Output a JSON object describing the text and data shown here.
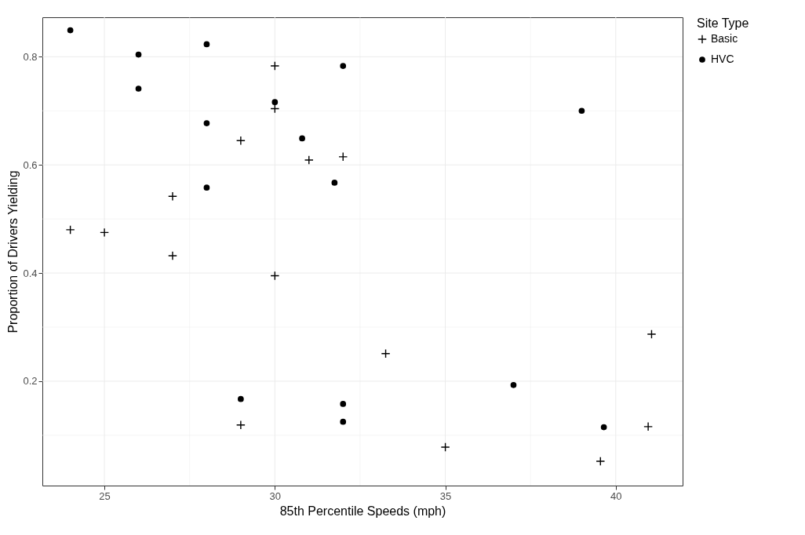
{
  "chart_data": {
    "type": "scatter",
    "xlabel": "85th Percentile Speeds (mph)",
    "ylabel": "Proportion of Drivers Yielding",
    "legend_title": "Site Type",
    "legend": "right",
    "grid": true,
    "xlim": [
      23.18,
      41.96
    ],
    "xticks": [
      25,
      {
        "value": 27.5,
        "label": null
      },
      30,
      {
        "value": 32.5,
        "label": null
      },
      35,
      {
        "value": 37.5,
        "label": null
      },
      40
    ],
    "ylim": [
      0.007,
      0.873
    ],
    "yticks": [
      {
        "value": 0.1,
        "label": null
      },
      {
        "value": 0.2,
        "label": "0.2"
      },
      {
        "value": 0.3,
        "label": null
      },
      {
        "value": 0.4,
        "label": "0.4"
      },
      {
        "value": 0.5,
        "label": null
      },
      {
        "value": 0.6,
        "label": "0.6"
      },
      {
        "value": 0.7,
        "label": null
      },
      {
        "value": 0.8,
        "label": "0.8"
      }
    ],
    "series": [
      {
        "name": "Basic",
        "color": "#000000",
        "marker": "cross",
        "x": [
          24,
          25,
          27,
          27,
          29,
          29,
          30,
          30,
          30,
          31,
          32,
          33.25,
          35,
          39.55,
          40.95,
          41.05
        ],
        "values": [
          0.48,
          0.475,
          0.542,
          0.432,
          0.645,
          0.119,
          0.783,
          0.704,
          0.395,
          0.609,
          0.615,
          0.251,
          0.078,
          0.052,
          0.116,
          0.287
        ]
      },
      {
        "name": "HVC",
        "color": "#000000",
        "marker": "circle",
        "x": [
          24,
          26,
          26,
          28,
          28,
          28,
          29,
          30,
          32,
          30.8,
          31.75,
          32,
          32,
          39,
          37,
          39.65
        ],
        "values": [
          0.849,
          0.804,
          0.741,
          0.823,
          0.677,
          0.558,
          0.167,
          0.716,
          0.783,
          0.649,
          0.567,
          0.158,
          0.125,
          0.7,
          0.193,
          0.115
        ]
      }
    ]
  }
}
